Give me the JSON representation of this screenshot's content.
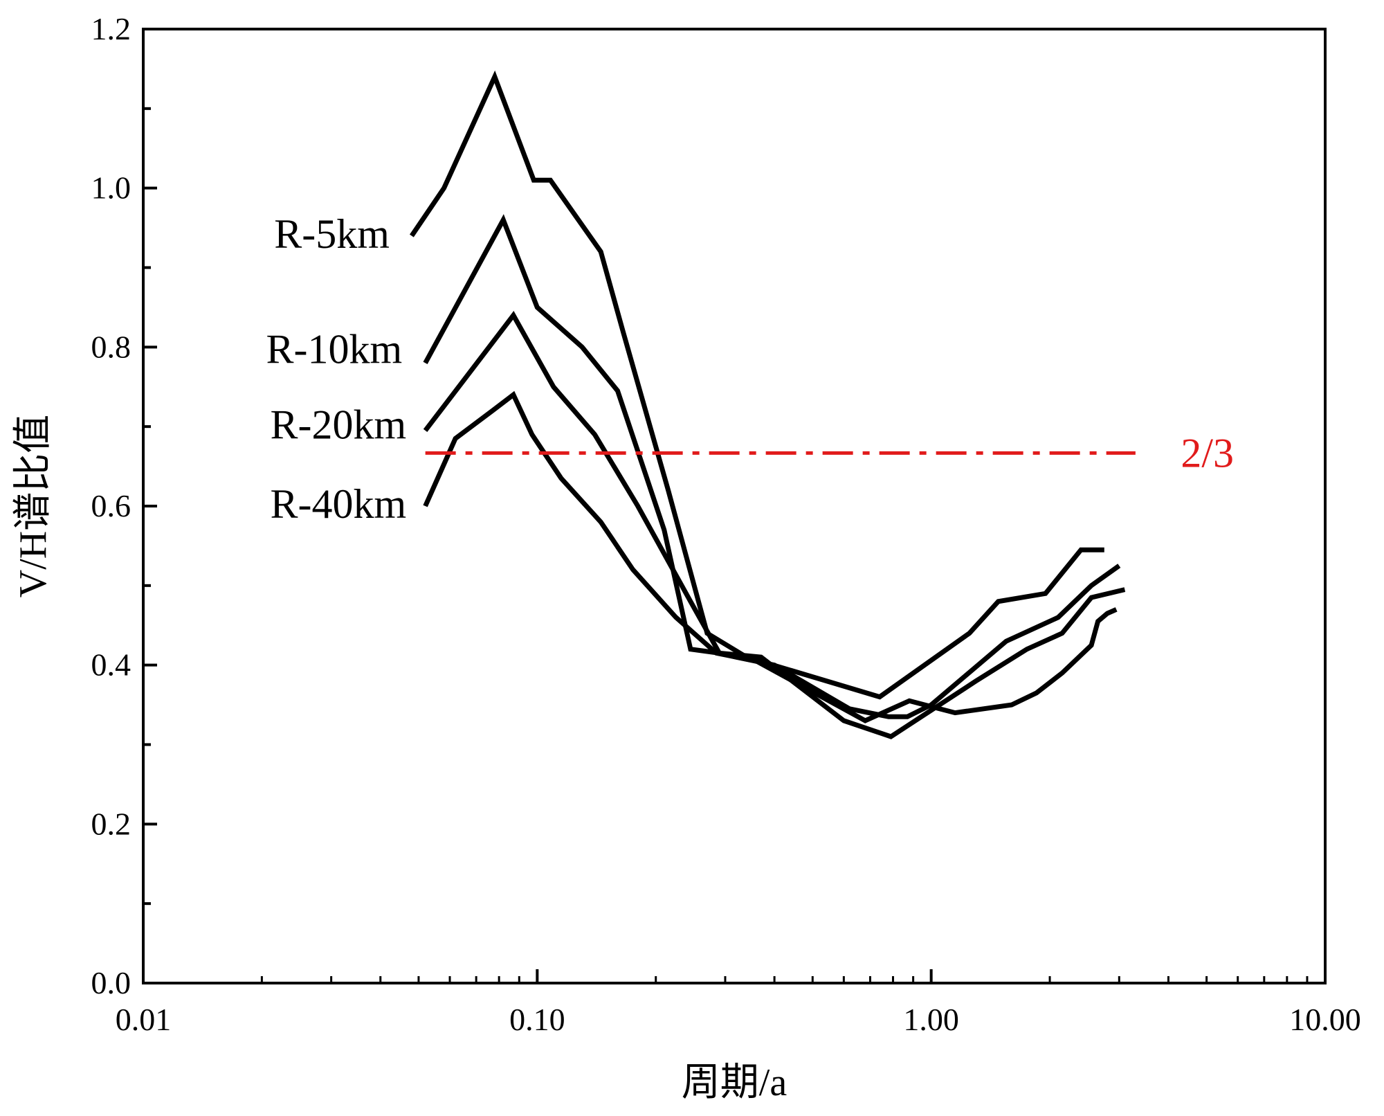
{
  "chart_data": {
    "type": "line",
    "title": "",
    "xlabel": "周期/a",
    "ylabel": "V/H谱比值",
    "xscale": "log",
    "xlim": [
      0.01,
      10
    ],
    "ylim": [
      0,
      1.2
    ],
    "xticks": [
      0.01,
      0.1,
      1,
      10
    ],
    "xtick_labels": [
      "0.01",
      "0.10",
      "1.00",
      "10.00"
    ],
    "yticks": [
      0,
      0.2,
      0.4,
      0.6,
      0.8,
      1.0,
      1.2
    ],
    "ytick_labels": [
      "0.0",
      "0.2",
      "0.4",
      "0.6",
      "0.8",
      "1.0",
      "1.2"
    ],
    "y_minor_ticks": [
      0.1,
      0.3,
      0.5,
      0.7,
      0.9,
      1.1
    ],
    "grid": false,
    "line_color": "#000000",
    "series": [
      {
        "name": "R-5km",
        "x": [
          0.048,
          0.058,
          0.078,
          0.098,
          0.108,
          0.145,
          0.165,
          0.215,
          0.27,
          0.34,
          0.74,
          1.25,
          1.48,
          1.95,
          2.4,
          2.75
        ],
        "y": [
          0.94,
          1.0,
          1.14,
          1.01,
          1.01,
          0.92,
          0.82,
          0.62,
          0.44,
          0.41,
          0.36,
          0.44,
          0.48,
          0.49,
          0.545,
          0.545
        ]
      },
      {
        "name": "R-10km",
        "x": [
          0.052,
          0.082,
          0.1,
          0.13,
          0.16,
          0.21,
          0.245,
          0.29,
          0.32,
          0.4,
          0.62,
          0.78,
          0.87,
          1.0,
          1.55,
          2.1,
          2.55,
          3.0
        ],
        "y": [
          0.78,
          0.96,
          0.85,
          0.8,
          0.745,
          0.57,
          0.42,
          0.415,
          0.41,
          0.4,
          0.345,
          0.335,
          0.335,
          0.35,
          0.43,
          0.46,
          0.5,
          0.525
        ]
      },
      {
        "name": "R-20km",
        "x": [
          0.052,
          0.087,
          0.11,
          0.14,
          0.18,
          0.245,
          0.29,
          0.37,
          0.6,
          0.79,
          1.3,
          1.75,
          2.15,
          2.55,
          3.1
        ],
        "y": [
          0.695,
          0.84,
          0.75,
          0.69,
          0.6,
          0.48,
          0.415,
          0.41,
          0.33,
          0.31,
          0.38,
          0.42,
          0.44,
          0.485,
          0.495
        ]
      },
      {
        "name": "R-40km",
        "x": [
          0.052,
          0.062,
          0.077,
          0.087,
          0.097,
          0.115,
          0.145,
          0.175,
          0.225,
          0.285,
          0.36,
          0.68,
          0.88,
          1.05,
          1.15,
          1.6,
          1.85,
          2.15,
          2.55,
          2.65,
          2.8,
          2.95
        ],
        "y": [
          0.6,
          0.685,
          0.72,
          0.74,
          0.69,
          0.635,
          0.58,
          0.52,
          0.46,
          0.415,
          0.405,
          0.33,
          0.355,
          0.345,
          0.34,
          0.35,
          0.365,
          0.39,
          0.425,
          0.455,
          0.465,
          0.47
        ]
      }
    ],
    "series_labels": [
      {
        "text": "R-5km",
        "x": 0.0215,
        "y": 0.925
      },
      {
        "text": "R-10km",
        "x": 0.0205,
        "y": 0.78
      },
      {
        "text": "R-20km",
        "x": 0.021,
        "y": 0.685
      },
      {
        "text": "R-40km",
        "x": 0.021,
        "y": 0.585
      }
    ],
    "reference_line": {
      "y": 0.6667,
      "x_start": 0.052,
      "x_end": 3.3,
      "style": "dash-dot",
      "color": "#e11b1b",
      "label": "2/3",
      "label_x": 4.3
    }
  }
}
